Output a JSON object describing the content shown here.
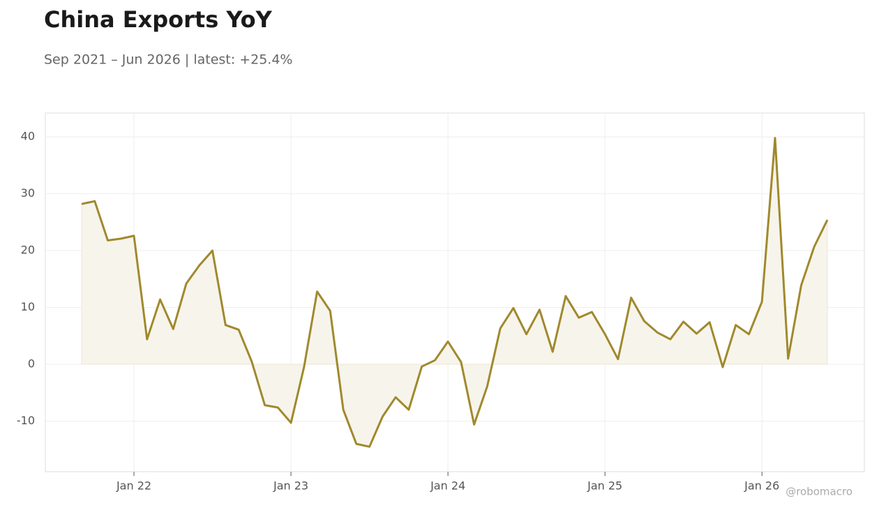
{
  "chart_data": {
    "type": "line",
    "title": "China Exports YoY",
    "subtitle": "Sep 2021 – Jun 2026 | latest: +25.4%",
    "watermark": "@robomacro",
    "x": [
      "2021-09",
      "2021-10",
      "2021-11",
      "2021-12",
      "2022-01",
      "2022-02",
      "2022-03",
      "2022-04",
      "2022-05",
      "2022-06",
      "2022-07",
      "2022-08",
      "2022-09",
      "2022-10",
      "2022-11",
      "2022-12",
      "2023-01",
      "2023-02",
      "2023-03",
      "2023-04",
      "2023-05",
      "2023-06",
      "2023-07",
      "2023-08",
      "2023-09",
      "2023-10",
      "2023-11",
      "2023-12",
      "2024-01",
      "2024-02",
      "2024-03",
      "2024-04",
      "2024-05",
      "2024-06",
      "2024-07",
      "2024-08",
      "2024-09",
      "2024-10",
      "2024-11",
      "2024-12",
      "2025-01",
      "2025-02",
      "2025-03",
      "2025-04",
      "2025-05",
      "2025-06",
      "2025-07",
      "2025-08",
      "2025-09",
      "2025-10",
      "2025-11",
      "2025-12",
      "2026-01",
      "2026-02",
      "2026-03",
      "2026-04",
      "2026-05",
      "2026-06"
    ],
    "series": [
      {
        "name": "China Exports YoY",
        "color": "#a0892c",
        "fill": "#f7f4ec",
        "values": [
          28.2,
          28.7,
          21.8,
          22.1,
          22.6,
          4.4,
          11.4,
          6.2,
          14.2,
          17.4,
          20.0,
          6.9,
          6.1,
          0.5,
          -7.2,
          -7.6,
          -10.3,
          -0.5,
          12.8,
          9.4,
          -8.0,
          -14.0,
          -14.5,
          -9.2,
          -5.8,
          -8.0,
          -0.4,
          0.7,
          4.0,
          0.4,
          -10.6,
          -3.9,
          6.3,
          9.9,
          5.3,
          9.6,
          2.2,
          12.0,
          8.2,
          9.2,
          5.3,
          0.9,
          11.7,
          7.6,
          5.6,
          4.4,
          7.5,
          5.4,
          7.4,
          -0.5,
          6.9,
          5.3,
          11.0,
          39.8,
          1.0,
          13.9,
          20.7,
          25.4
        ]
      }
    ],
    "xticks": [
      {
        "value": "2022-01",
        "label": "Jan 22"
      },
      {
        "value": "2023-01",
        "label": "Jan 23"
      },
      {
        "value": "2024-01",
        "label": "Jan 24"
      },
      {
        "value": "2025-01",
        "label": "Jan 25"
      },
      {
        "value": "2026-01",
        "label": "Jan 26"
      }
    ],
    "ylim": [
      -18.9,
      44.2
    ],
    "yticks": [
      -10,
      0,
      10,
      20,
      30,
      40
    ],
    "grid": true
  }
}
